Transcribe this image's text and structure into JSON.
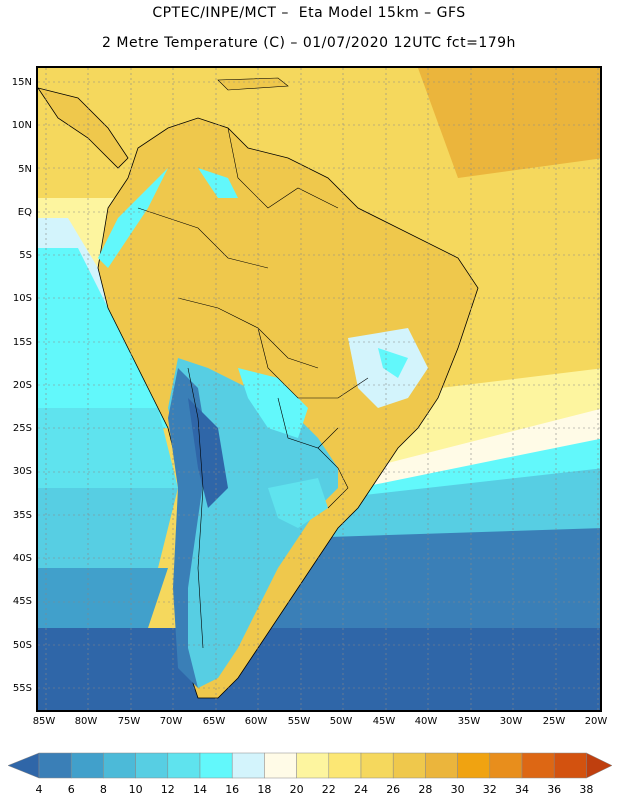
{
  "header": {
    "title": "CPTEC/INPE/MCT –  Eta Model 15km – GFS",
    "subtitle": "2 Metre Temperature (C) – 01/07/2020 12UTC fct=179h"
  },
  "map": {
    "region": "South America",
    "lat_labels": [
      "15N",
      "10N",
      "5N",
      "EQ",
      "5S",
      "10S",
      "15S",
      "20S",
      "25S",
      "30S",
      "35S",
      "40S",
      "45S",
      "50S",
      "55S"
    ],
    "lon_labels": [
      "85W",
      "80W",
      "75W",
      "70W",
      "65W",
      "60W",
      "55W",
      "50W",
      "45W",
      "40W",
      "35W",
      "30W",
      "25W",
      "20W"
    ]
  },
  "legend": {
    "unit": "C",
    "labels": [
      "4",
      "6",
      "8",
      "10",
      "12",
      "14",
      "16",
      "18",
      "20",
      "22",
      "24",
      "26",
      "28",
      "30",
      "32",
      "34",
      "36",
      "38"
    ],
    "colors": [
      "#2f66a8",
      "#3a7fb7",
      "#41a0cb",
      "#4cbad8",
      "#57cee3",
      "#5fe3ee",
      "#62f8fb",
      "#d3f4fc",
      "#fffbe7",
      "#fdf59f",
      "#fce774",
      "#f5d85d",
      "#efc84c",
      "#ebb53c",
      "#f0a311",
      "#e88e1c",
      "#dd6714",
      "#d3520f",
      "#bf3f0e"
    ]
  }
}
